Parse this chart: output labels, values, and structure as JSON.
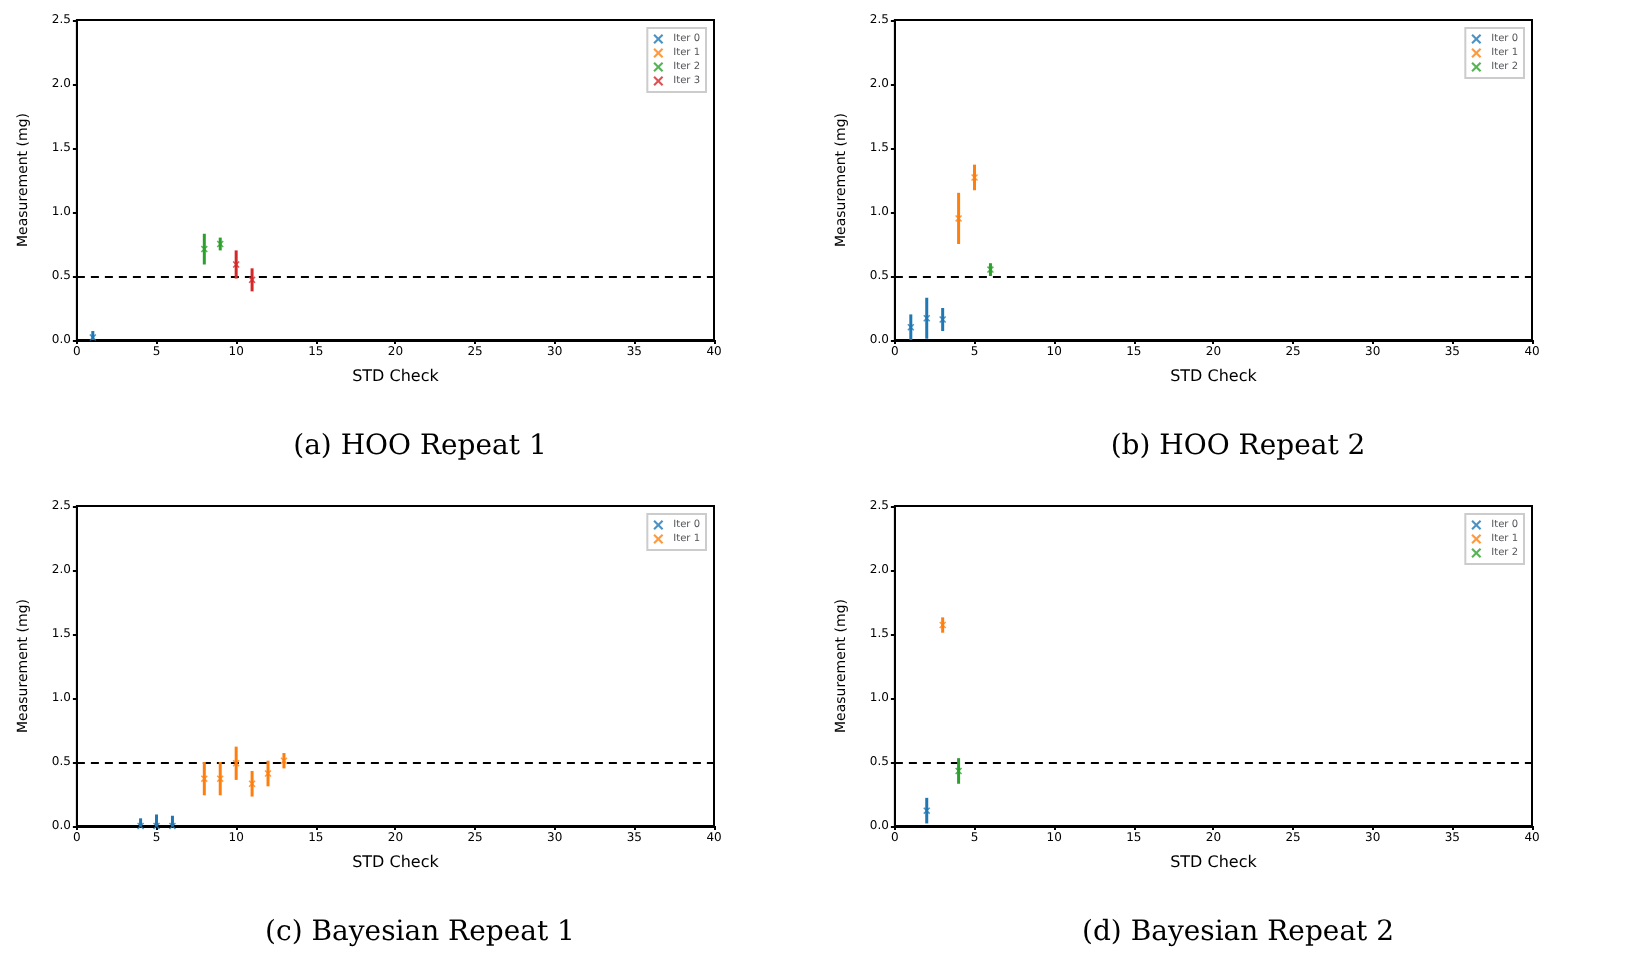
{
  "chart_data": [
    {
      "type": "scatter",
      "title": "(a) HOO Repeat 1",
      "xlabel": "STD Check",
      "ylabel": "Measurement (mg)",
      "xlim": [
        0,
        40
      ],
      "ylim": [
        0,
        2.5
      ],
      "xticks": [
        0,
        5,
        10,
        15,
        20,
        25,
        30,
        35,
        40
      ],
      "yticks": [
        {
          "value": 0,
          "label": "0.0"
        },
        {
          "value": 0.5,
          "label": "0.5"
        },
        {
          "value": 1,
          "label": "1.0"
        },
        {
          "value": 1.5,
          "label": "1.5"
        },
        {
          "value": 2,
          "label": "2.0"
        },
        {
          "value": 2.5,
          "label": "2.5"
        }
      ],
      "marker": "cross",
      "legend": "top right",
      "grid": false,
      "ref_lines": [
        {
          "axis": "y",
          "value": 0.5,
          "color": "#000000",
          "line_style": "dashed"
        }
      ],
      "series": [
        {
          "name": "Iter 0",
          "color": "#1f77b4",
          "x": [
            1
          ],
          "values": [
            0.02
          ],
          "errors": [
            [
              0,
              0.07
            ]
          ]
        },
        {
          "name": "Iter 1",
          "color": "#ff7f0e"
        },
        {
          "name": "Iter 2",
          "color": "#2ca02c",
          "x": [
            8,
            9
          ],
          "values": [
            0.71,
            0.75
          ],
          "errors": [
            0.12,
            0.05
          ]
        },
        {
          "name": "Iter 3",
          "color": "#d62728",
          "x": [
            10,
            11
          ],
          "values": [
            0.59,
            0.47
          ],
          "errors": [
            0.11,
            0.09
          ]
        }
      ]
    },
    {
      "type": "scatter",
      "title": "(b) HOO Repeat 2",
      "xlabel": "STD Check",
      "ylabel": "Measurement (mg)",
      "xlim": [
        0,
        40
      ],
      "ylim": [
        0,
        2.5
      ],
      "xticks": [
        0,
        5,
        10,
        15,
        20,
        25,
        30,
        35,
        40
      ],
      "yticks": [
        {
          "value": 0,
          "label": "0.0"
        },
        {
          "value": 0.5,
          "label": "0.5"
        },
        {
          "value": 1,
          "label": "1.0"
        },
        {
          "value": 1.5,
          "label": "1.5"
        },
        {
          "value": 2,
          "label": "2.0"
        },
        {
          "value": 2.5,
          "label": "2.5"
        }
      ],
      "marker": "cross",
      "legend": "top right",
      "grid": false,
      "ref_lines": [
        {
          "axis": "y",
          "value": 0.5,
          "color": "#000000",
          "line_style": "dashed"
        }
      ],
      "series": [
        {
          "name": "Iter 0",
          "color": "#1f77b4",
          "x": [
            1,
            2,
            3
          ],
          "values": [
            0.1,
            0.17,
            0.16
          ],
          "errors": [
            0.1,
            0.16,
            0.09
          ]
        },
        {
          "name": "Iter 1",
          "color": "#ff7f0e",
          "x": [
            4,
            5
          ],
          "values": [
            0.95,
            1.27
          ],
          "errors": [
            0.2,
            0.1
          ]
        },
        {
          "name": "Iter 2",
          "color": "#2ca02c",
          "x": [
            6
          ],
          "values": [
            0.55
          ],
          "errors": [
            0.05
          ]
        }
      ]
    },
    {
      "type": "scatter",
      "title": "(c) Bayesian Repeat 1",
      "xlabel": "STD Check",
      "ylabel": "Measurement (mg)",
      "xlim": [
        0,
        40
      ],
      "ylim": [
        0,
        2.5
      ],
      "xticks": [
        0,
        5,
        10,
        15,
        20,
        25,
        30,
        35,
        40
      ],
      "yticks": [
        {
          "value": 0,
          "label": "0.0"
        },
        {
          "value": 0.5,
          "label": "0.5"
        },
        {
          "value": 1,
          "label": "1.0"
        },
        {
          "value": 1.5,
          "label": "1.5"
        },
        {
          "value": 2,
          "label": "2.0"
        },
        {
          "value": 2.5,
          "label": "2.5"
        }
      ],
      "marker": "cross",
      "legend": "top right",
      "grid": false,
      "ref_lines": [
        {
          "axis": "y",
          "value": 0.5,
          "color": "#000000",
          "line_style": "dashed"
        }
      ],
      "series": [
        {
          "name": "Iter 0",
          "color": "#1f77b4",
          "x": [
            4,
            5,
            6
          ],
          "values": [
            0,
            0,
            0
          ],
          "errors": [
            [
              0,
              0.06
            ],
            [
              0,
              0.09
            ],
            [
              0,
              0.08
            ]
          ]
        },
        {
          "name": "Iter 1",
          "color": "#ff7f0e",
          "x": [
            8,
            9,
            10,
            11,
            12,
            13
          ],
          "values": [
            0.37,
            0.37,
            0.49,
            0.33,
            0.41,
            0.51
          ],
          "errors": [
            0.13,
            0.13,
            0.13,
            0.1,
            0.1,
            0.06
          ]
        }
      ]
    },
    {
      "type": "scatter",
      "title": "(d) Bayesian Repeat 2",
      "xlabel": "STD Check",
      "ylabel": "Measurement (mg)",
      "xlim": [
        0,
        40
      ],
      "ylim": [
        0,
        2.5
      ],
      "xticks": [
        0,
        5,
        10,
        15,
        20,
        25,
        30,
        35,
        40
      ],
      "yticks": [
        {
          "value": 0,
          "label": "0.0"
        },
        {
          "value": 0.5,
          "label": "0.5"
        },
        {
          "value": 1,
          "label": "1.0"
        },
        {
          "value": 1.5,
          "label": "1.5"
        },
        {
          "value": 2,
          "label": "2.0"
        },
        {
          "value": 2.5,
          "label": "2.5"
        }
      ],
      "marker": "cross",
      "legend": "top right",
      "grid": false,
      "ref_lines": [
        {
          "axis": "y",
          "value": 0.5,
          "color": "#000000",
          "line_style": "dashed"
        }
      ],
      "series": [
        {
          "name": "Iter 0",
          "color": "#1f77b4",
          "x": [
            2
          ],
          "values": [
            0.12
          ],
          "errors": [
            0.1
          ]
        },
        {
          "name": "Iter 1",
          "color": "#ff7f0e",
          "x": [
            3
          ],
          "values": [
            1.57
          ],
          "errors": [
            0.06
          ]
        },
        {
          "name": "Iter 2",
          "color": "#2ca02c",
          "x": [
            4
          ],
          "values": [
            0.43
          ],
          "errors": [
            0.1
          ]
        }
      ]
    }
  ]
}
